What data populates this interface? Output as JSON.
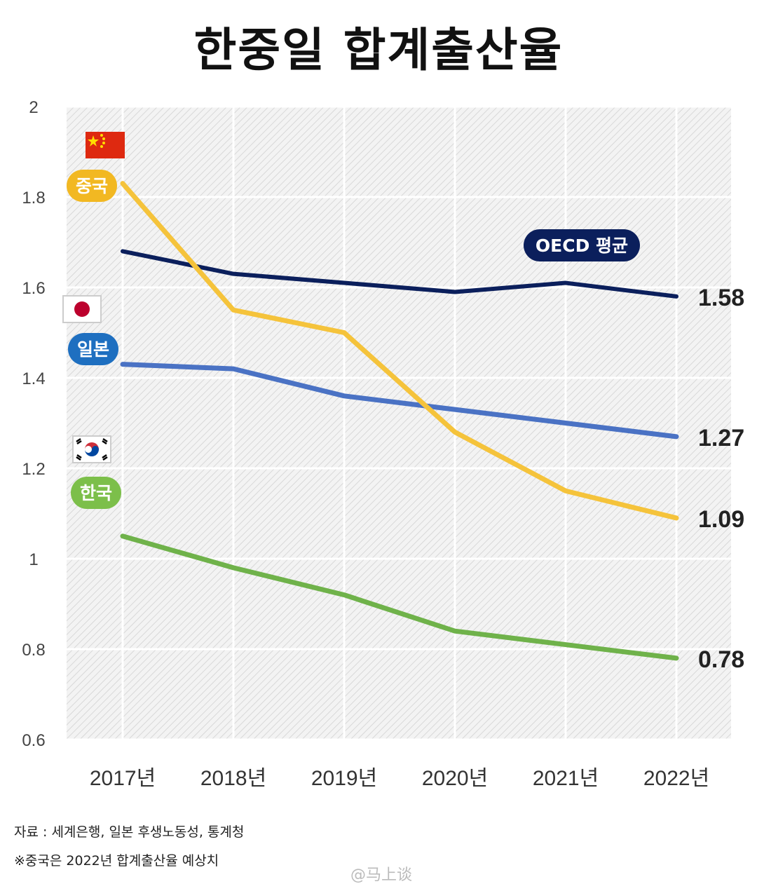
{
  "chart_data": {
    "type": "line",
    "title": "한중일 합계출산율",
    "categories": [
      "2017년",
      "2018년",
      "2019년",
      "2020년",
      "2021년",
      "2022년"
    ],
    "ylim": [
      0.6,
      2.0
    ],
    "yticks": [
      "2",
      "1.8",
      "1.6",
      "1.4",
      "1.2",
      "1",
      "0.8",
      "0.6"
    ],
    "grid": true,
    "series": [
      {
        "name": "OECD 평균",
        "values": [
          1.68,
          1.63,
          1.61,
          1.59,
          1.61,
          1.58
        ],
        "end_label": "1.58",
        "color": "#0b1f5c",
        "badge_color": "#0b1f5c"
      },
      {
        "name": "중국",
        "values": [
          1.83,
          1.55,
          1.5,
          1.28,
          1.15,
          1.09
        ],
        "end_label": "1.09",
        "color": "#f5c33b",
        "badge_color": "#f2b822",
        "flag": "china-flag-icon"
      },
      {
        "name": "일본",
        "values": [
          1.43,
          1.42,
          1.36,
          1.33,
          1.3,
          1.27
        ],
        "end_label": "1.27",
        "color": "#4a72c4",
        "badge_color": "#1e6fc0",
        "flag": "japan-flag-icon"
      },
      {
        "name": "한국",
        "values": [
          1.05,
          0.98,
          0.92,
          0.84,
          0.81,
          0.78
        ],
        "end_label": "0.78",
        "color": "#6fb24a",
        "badge_color": "#7cbf4a",
        "flag": "korea-flag-icon"
      }
    ]
  },
  "notes": {
    "source": "자료 : 세계은행, 일본 후생노동성, 통계청",
    "estimate": "※중국은 2022년 합계출산율 예상치"
  },
  "watermark": "@马上谈"
}
